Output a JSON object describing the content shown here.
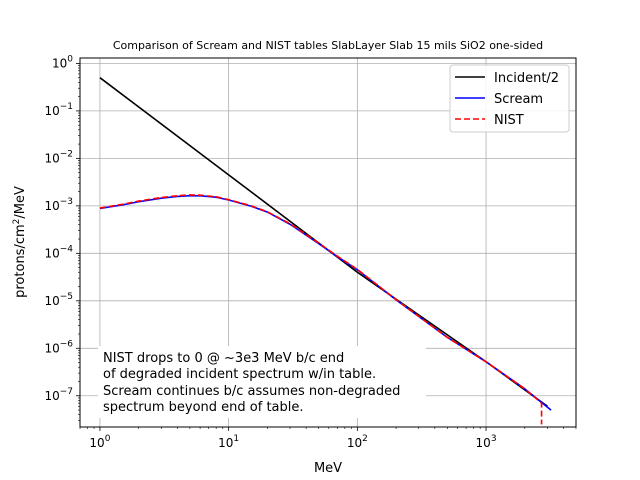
{
  "chart_data": {
    "type": "line",
    "title": "Comparison of Scream and NIST tables SlabLayer Slab 15 mils SiO2 one-sided",
    "xlabel": "MeV",
    "ylabel_main": "protons/cm",
    "ylabel_sup": "2",
    "ylabel_tail": "/MeV",
    "xscale": "log",
    "yscale": "log",
    "xlim": [
      0.7,
      5000
    ],
    "ylim": [
      2.2e-08,
      1.3
    ],
    "grid": true,
    "legend_position": "top-right",
    "x_ticks": [
      {
        "value": 1,
        "base": "10",
        "exp": "0"
      },
      {
        "value": 10,
        "base": "10",
        "exp": "1"
      },
      {
        "value": 100,
        "base": "10",
        "exp": "2"
      },
      {
        "value": 1000,
        "base": "10",
        "exp": "3"
      }
    ],
    "y_ticks": [
      {
        "value": 1,
        "base": "10",
        "exp": "0"
      },
      {
        "value": 0.1,
        "base": "10",
        "exp": "−1"
      },
      {
        "value": 0.01,
        "base": "10",
        "exp": "−2"
      },
      {
        "value": 0.001,
        "base": "10",
        "exp": "−3"
      },
      {
        "value": 0.0001,
        "base": "10",
        "exp": "−4"
      },
      {
        "value": 1e-05,
        "base": "10",
        "exp": "−5"
      },
      {
        "value": 1e-06,
        "base": "10",
        "exp": "−6"
      },
      {
        "value": 1e-07,
        "base": "10",
        "exp": "−7"
      }
    ],
    "series": [
      {
        "name": "Incident/2",
        "color": "#000000",
        "dash": "solid",
        "x": [
          1,
          10,
          100,
          1000,
          3000
        ],
        "y": [
          0.5,
          0.0045,
          4e-05,
          5.2e-07,
          6e-08
        ]
      },
      {
        "name": "Scream",
        "color": "#0000ff",
        "dash": "solid",
        "x": [
          1,
          1.5,
          2,
          3,
          4,
          5,
          6,
          8,
          10,
          15,
          20,
          30,
          50,
          70,
          100,
          200,
          500,
          1000,
          2000,
          3200
        ],
        "y": [
          0.00088,
          0.00105,
          0.00122,
          0.00145,
          0.00158,
          0.00164,
          0.00163,
          0.00152,
          0.00133,
          0.00098,
          0.00074,
          0.00041,
          0.00016,
          8.5e-05,
          4.5e-05,
          1.05e-05,
          1.7e-06,
          5.2e-07,
          1.4e-07,
          5e-08
        ]
      },
      {
        "name": "NIST",
        "color": "#ff0000",
        "dash": "dashed",
        "x": [
          1,
          1.5,
          2,
          3,
          4,
          5,
          6,
          8,
          10,
          15,
          20,
          30,
          50,
          70,
          100,
          200,
          500,
          1000,
          2000,
          2700,
          2700
        ],
        "y": [
          0.0009,
          0.00108,
          0.00126,
          0.0015,
          0.00163,
          0.0017,
          0.00168,
          0.00155,
          0.00135,
          0.001,
          0.00075,
          0.00042,
          0.000165,
          8.7e-05,
          4.6e-05,
          1.06e-05,
          1.7e-06,
          5.2e-07,
          1.4e-07,
          7e-08,
          2.5e-08
        ]
      }
    ],
    "annotation_lines": [
      "NIST drops to 0 @ ~3e3 MeV b/c end",
      "of degraded incident spectrum w/in table.",
      "Scream continues b/c assumes non-degraded",
      "spectrum beyond end of table."
    ]
  }
}
